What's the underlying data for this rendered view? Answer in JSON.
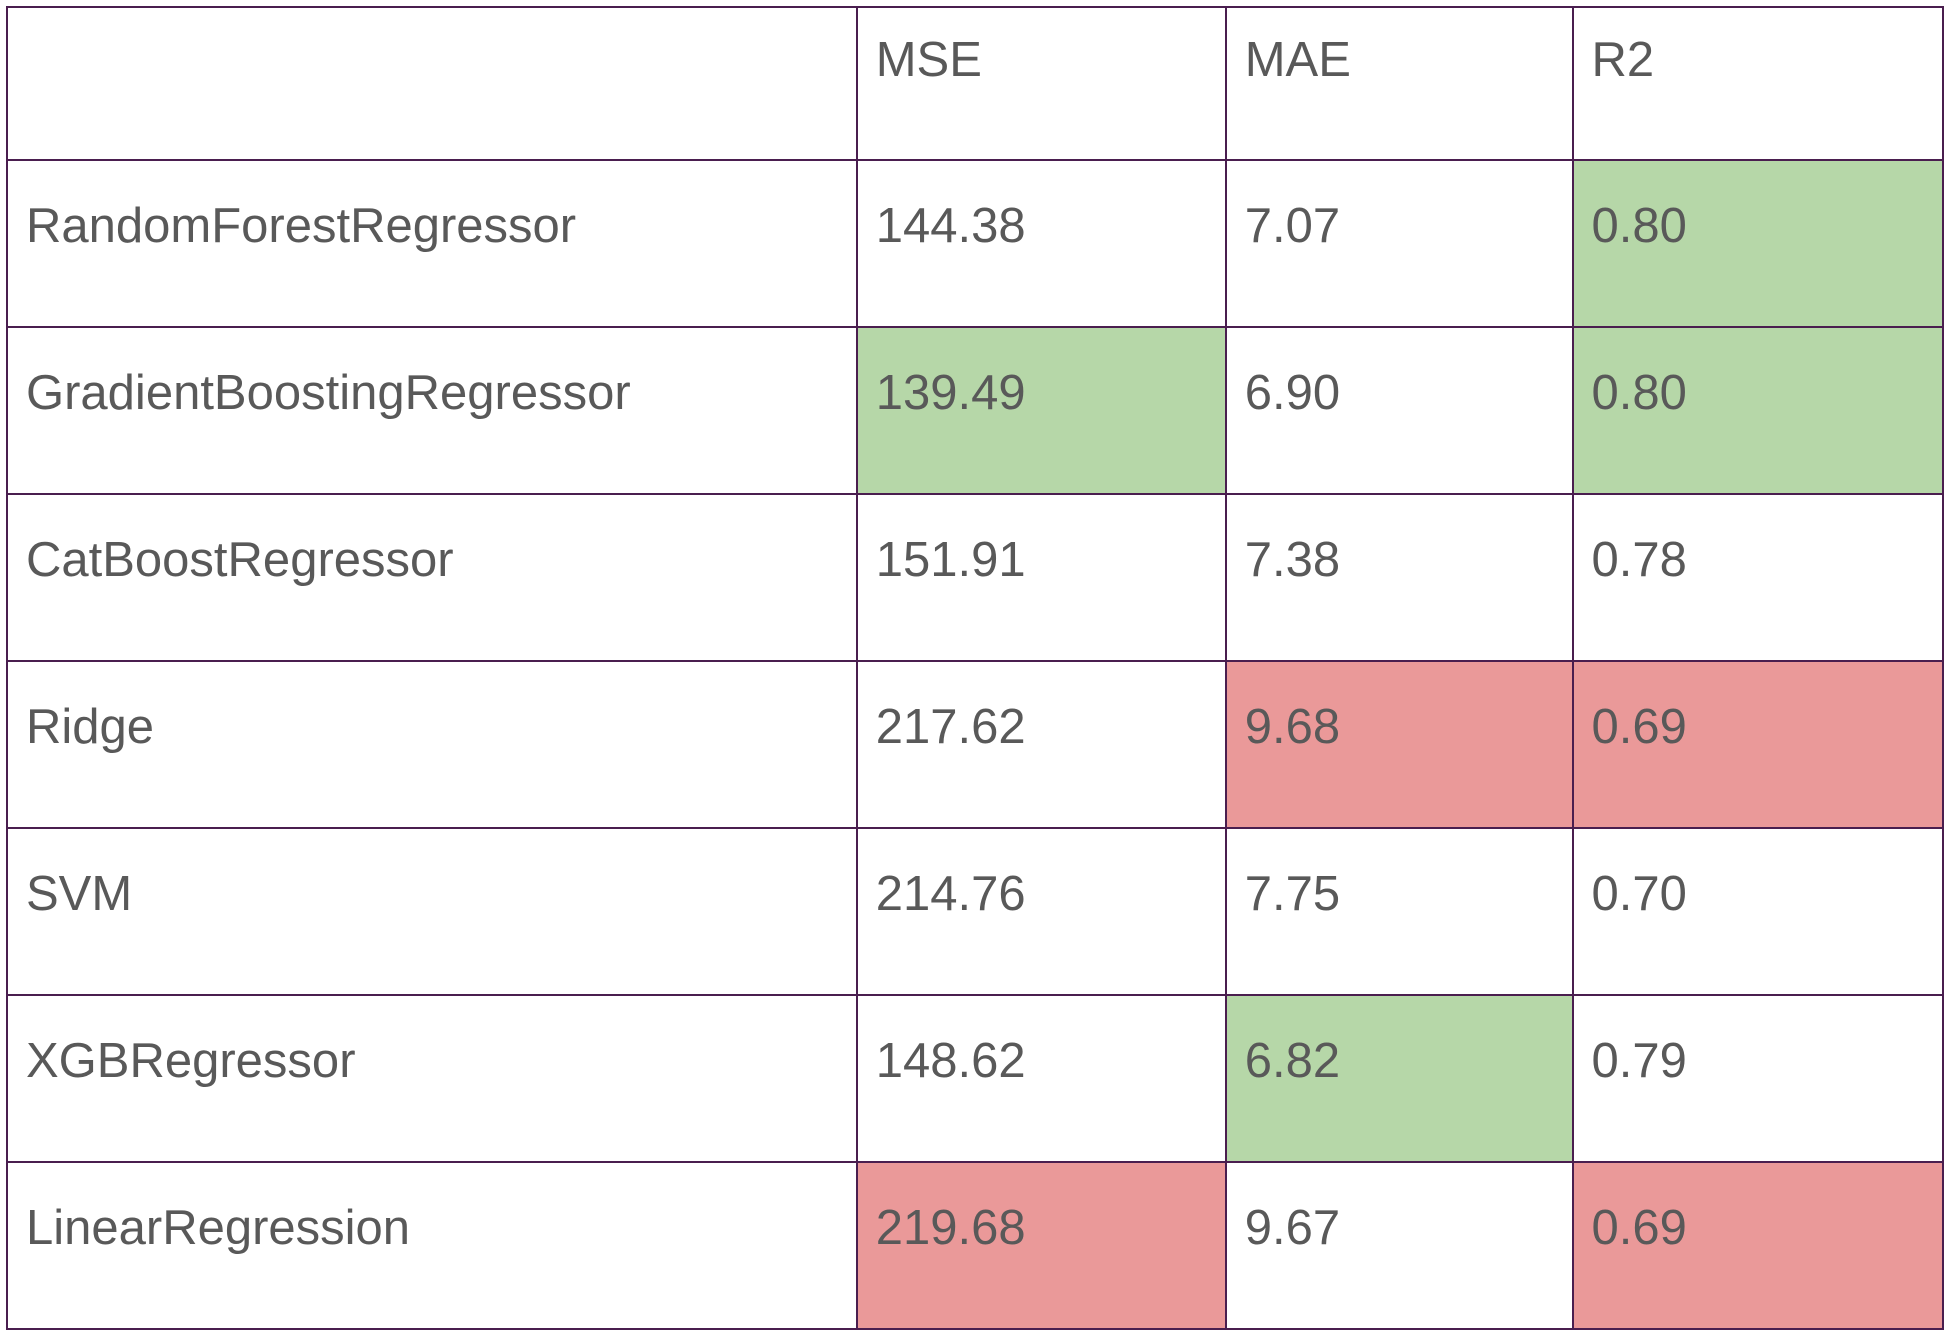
{
  "table": {
    "headers": [
      "",
      "MSE",
      "MAE",
      "R2"
    ],
    "rows": [
      {
        "model": "RandomForestRegressor",
        "mse": "144.38",
        "mae": "7.07",
        "r2": "0.80"
      },
      {
        "model": "GradientBoostingRegressor",
        "mse": "139.49",
        "mae": "6.90",
        "r2": "0.80"
      },
      {
        "model": "CatBoostRegressor",
        "mse": "151.91",
        "mae": "7.38",
        "r2": "0.78"
      },
      {
        "model": "Ridge",
        "mse": "217.62",
        "mae": "9.68",
        "r2": "0.69"
      },
      {
        "model": "SVM",
        "mse": "214.76",
        "mae": "7.75",
        "r2": "0.70"
      },
      {
        "model": "XGBRegressor",
        "mse": "148.62",
        "mae": "6.82",
        "r2": "0.79"
      },
      {
        "model": "LinearRegression",
        "mse": "219.68",
        "mae": "9.67",
        "r2": "0.69"
      }
    ]
  },
  "colors": {
    "best_highlight": "#b6d7a8",
    "worst_highlight": "#ea9999",
    "border": "#4a1e4f",
    "text": "#595959"
  },
  "highlights": {
    "best": [
      {
        "row": "RandomForestRegressor",
        "column": "R2"
      },
      {
        "row": "GradientBoostingRegressor",
        "column": "MSE"
      },
      {
        "row": "GradientBoostingRegressor",
        "column": "R2"
      },
      {
        "row": "XGBRegressor",
        "column": "MAE"
      }
    ],
    "worst": [
      {
        "row": "Ridge",
        "column": "MAE"
      },
      {
        "row": "Ridge",
        "column": "R2"
      },
      {
        "row": "LinearRegression",
        "column": "MSE"
      },
      {
        "row": "LinearRegression",
        "column": "R2"
      }
    ]
  }
}
